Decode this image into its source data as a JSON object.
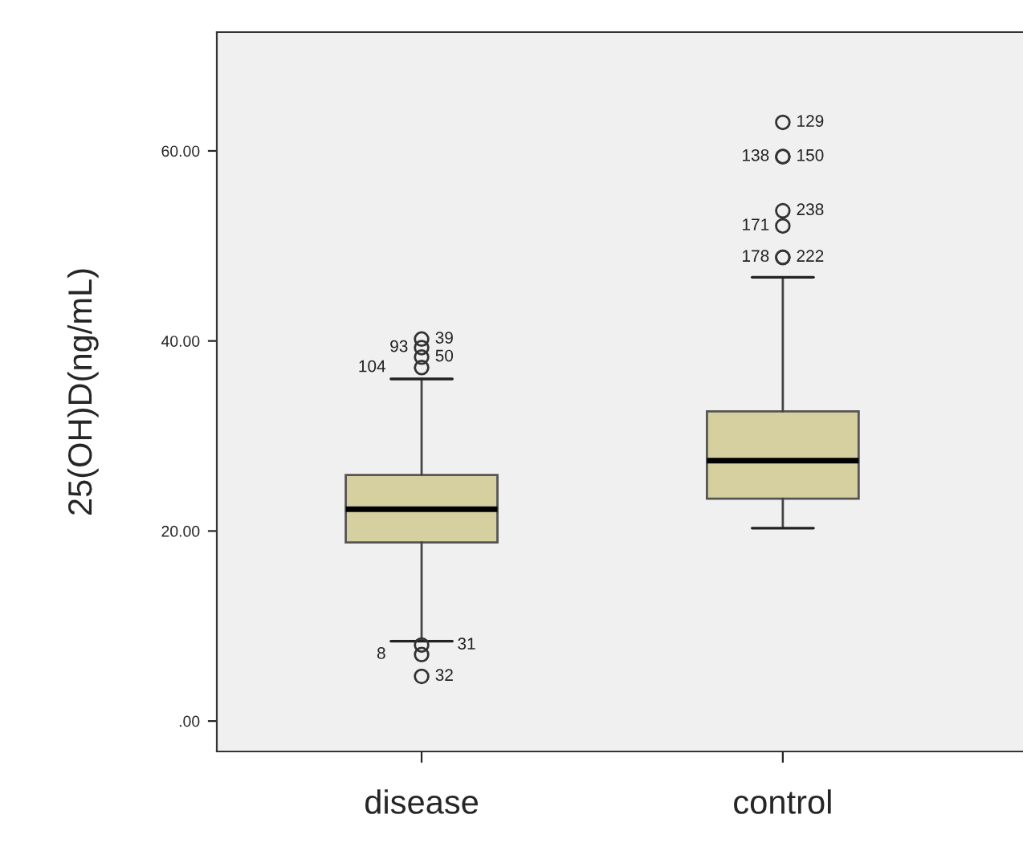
{
  "chart_data": {
    "type": "box",
    "ylabel": "25(OH)D(ng/mL)",
    "categories": [
      "disease",
      "control"
    ],
    "boxes": [
      {
        "low": 8.4,
        "q1": 18.8,
        "median": 22.3,
        "q3": 25.9,
        "high": 36.0,
        "outliers": [
          40.2,
          39.3,
          38.3,
          37.2,
          8.0,
          7.0,
          4.7
        ]
      },
      {
        "low": 20.3,
        "q1": 23.4,
        "median": 27.4,
        "q3": 32.6,
        "high": 46.7,
        "outliers": [
          63.0,
          59.4,
          59.4,
          53.7,
          52.1,
          48.8,
          48.8
        ]
      }
    ],
    "color": "#d6cf9f",
    "ylim": [
      -3.2,
      72.5
    ],
    "yticks": [
      {
        "value": 0,
        "label": ".00"
      },
      {
        "value": 20,
        "label": "20.00"
      },
      {
        "value": 40,
        "label": "40.00"
      },
      {
        "value": 60,
        "label": "60.00"
      }
    ],
    "grid": false,
    "annotations": [
      "39",
      "93",
      "50",
      "104",
      "31",
      "8",
      "32",
      "129",
      "150",
      "138",
      "238",
      "171",
      "222",
      "178"
    ]
  }
}
